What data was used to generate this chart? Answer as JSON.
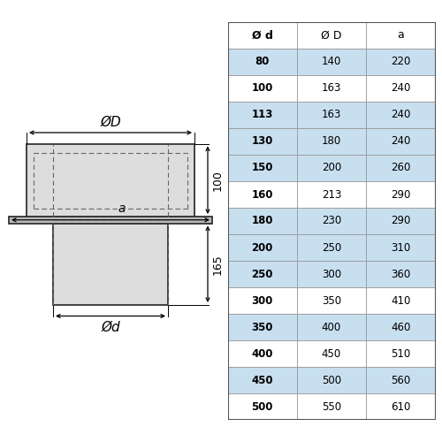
{
  "table_headers": [
    "Ø d",
    "Ø D",
    "a"
  ],
  "table_rows": [
    [
      "80",
      "140",
      "220"
    ],
    [
      "100",
      "163",
      "240"
    ],
    [
      "113",
      "163",
      "240"
    ],
    [
      "130",
      "180",
      "240"
    ],
    [
      "150",
      "200",
      "260"
    ],
    [
      "160",
      "213",
      "290"
    ],
    [
      "180",
      "230",
      "290"
    ],
    [
      "200",
      "250",
      "310"
    ],
    [
      "250",
      "300",
      "360"
    ],
    [
      "300",
      "350",
      "410"
    ],
    [
      "350",
      "400",
      "460"
    ],
    [
      "400",
      "450",
      "510"
    ],
    [
      "450",
      "500",
      "560"
    ],
    [
      "500",
      "550",
      "610"
    ]
  ],
  "row_bg_blue": "#c8dff0",
  "row_bg_white": "#ffffff",
  "header_bg": "#ffffff",
  "border_color": "#777777",
  "dim_100": "100",
  "dim_165": "165",
  "dim_a": "a",
  "dim_OD": "ØD",
  "dim_Od": "Ød",
  "bg_color": "#ffffff",
  "drawing_fill": "#dddddd",
  "flange_fill": "#bbbbbb",
  "drawing_stroke": "#333333"
}
